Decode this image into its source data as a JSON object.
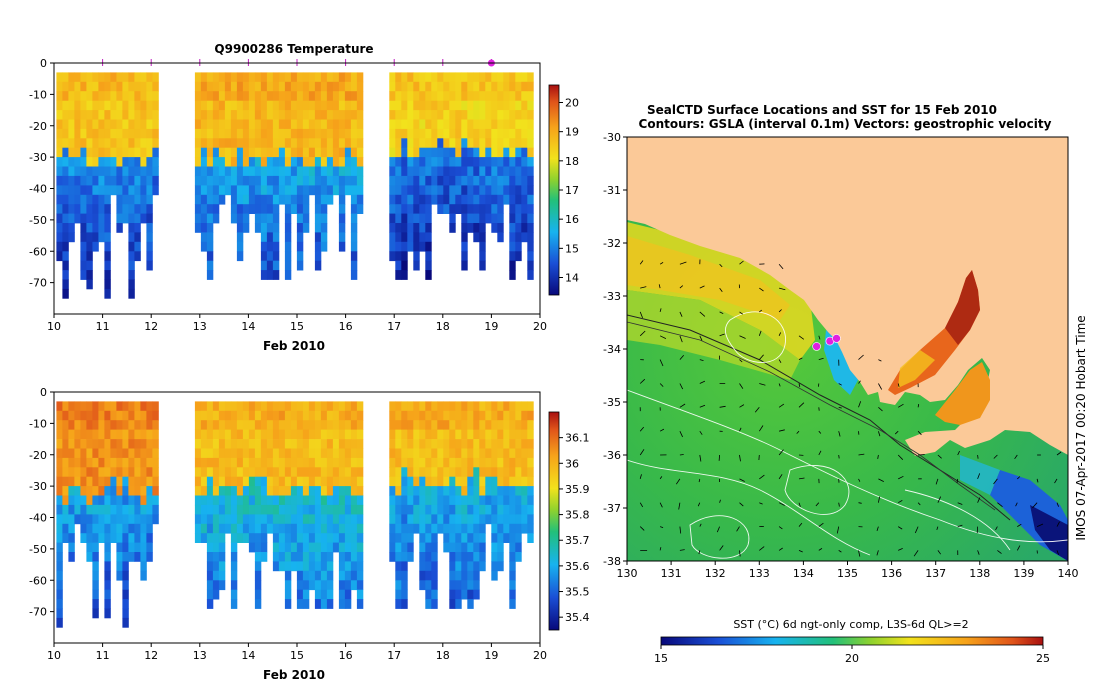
{
  "chart_data": [
    {
      "type": "heatmap",
      "title": "Q9900286  Temperature",
      "xlabel": "Feb 2010",
      "ylabel": "",
      "xlim": [
        10,
        20
      ],
      "ylim": [
        -80,
        0
      ],
      "x_ticks": [
        "10",
        "11",
        "12",
        "13",
        "14",
        "15",
        "16",
        "17",
        "18",
        "19",
        "20"
      ],
      "y_ticks": [
        "0",
        "-10",
        "-20",
        "-30",
        "-40",
        "-50",
        "-60",
        "-70"
      ],
      "colorbar_ticks": [
        "14",
        "15",
        "16",
        "17",
        "18",
        "19",
        "20"
      ],
      "colorbar_range": [
        13.4,
        20.6
      ],
      "profile_markers_day": [
        11,
        12,
        13,
        14,
        15,
        16,
        17,
        18,
        19
      ],
      "highlight_marker_day": 19,
      "segments": [
        {
          "start_day": 10.05,
          "end_day": 12.1,
          "surface_value": 18.6,
          "thermocline_depth": -28,
          "deep_value": 15.2,
          "max_depth": -75
        },
        {
          "start_day": 12.9,
          "end_day": 16.25,
          "surface_value": 18.8,
          "thermocline_depth": -29,
          "deep_value": 15.5,
          "max_depth": -69
        },
        {
          "start_day": 16.9,
          "end_day": 19.75,
          "surface_value": 18.4,
          "thermocline_depth": -26,
          "deep_value": 15.0,
          "max_depth": -69
        }
      ]
    },
    {
      "type": "heatmap",
      "title": "",
      "xlabel": "Feb 2010",
      "ylabel": "",
      "xlim": [
        10,
        20
      ],
      "ylim": [
        -80,
        0
      ],
      "x_ticks": [
        "10",
        "11",
        "12",
        "13",
        "14",
        "15",
        "16",
        "17",
        "18",
        "19",
        "20"
      ],
      "y_ticks": [
        "0",
        "-10",
        "-20",
        "-30",
        "-40",
        "-50",
        "-60",
        "-70"
      ],
      "colorbar_ticks": [
        "35.4",
        "35.5",
        "35.6",
        "35.7",
        "35.8",
        "35.9",
        "36",
        "36.1"
      ],
      "colorbar_range": [
        35.35,
        36.2
      ],
      "segments": [
        {
          "start_day": 10.05,
          "end_day": 12.1,
          "surface_value": 36.05,
          "thermocline_depth": -30,
          "deep_value": 35.6,
          "max_depth": -75
        },
        {
          "start_day": 12.9,
          "end_day": 16.25,
          "surface_value": 35.98,
          "thermocline_depth": -30,
          "deep_value": 35.65,
          "max_depth": -69
        },
        {
          "start_day": 16.9,
          "end_day": 19.75,
          "surface_value": 35.98,
          "thermocline_depth": -27,
          "deep_value": 35.62,
          "max_depth": -69
        }
      ]
    },
    {
      "type": "heatmap",
      "title": "SealCTD Surface Locations and SST for 15 Feb 2010",
      "subtitle": "Contours: GSLA (interval 0.1m) Vectors: geostrophic velocity",
      "xlabel": "",
      "ylabel": "",
      "xlim": [
        130,
        140
      ],
      "ylim": [
        -38,
        -30
      ],
      "x_ticks": [
        "130",
        "131",
        "132",
        "133",
        "134",
        "135",
        "136",
        "137",
        "138",
        "139",
        "140"
      ],
      "y_ticks": [
        "-30",
        "-31",
        "-32",
        "-33",
        "-34",
        "-35",
        "-36",
        "-37",
        "-38"
      ],
      "colorbar_label": "SST (°C) 6d ngt-only comp, L3S-6d QL>=2",
      "colorbar_ticks": [
        "15",
        "20",
        "25"
      ],
      "colorbar_range": [
        15,
        25
      ],
      "seal_locations": [
        {
          "lon": 134.3,
          "lat": -33.95
        },
        {
          "lon": 134.6,
          "lat": -33.85
        },
        {
          "lon": 134.75,
          "lat": -33.8
        }
      ],
      "credit": "IMOS 07-Apr-2017 00:20 Hobart Time"
    }
  ]
}
